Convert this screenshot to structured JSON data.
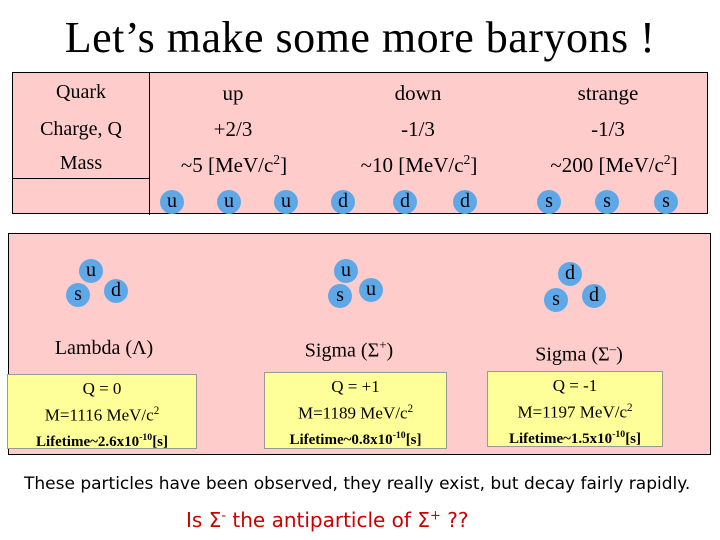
{
  "title": "Let’s make some more baryons !",
  "table": {
    "row_labels": [
      "Quark",
      "Charge, Q",
      "Mass"
    ],
    "columns": [
      {
        "name": "up",
        "charge": "+2/3",
        "mass": "~5 [MeV/c",
        "mass_sup": "2",
        "mass_end": "]",
        "symbol": "u"
      },
      {
        "name": "down",
        "charge": "-1/3",
        "mass": "~10 [MeV/c",
        "mass_sup": "2",
        "mass_end": "]",
        "symbol": "d"
      },
      {
        "name": "strange",
        "charge": "-1/3",
        "mass": "~200 [MeV/c",
        "mass_sup": "2",
        "mass_end": "]",
        "symbol": "s"
      }
    ]
  },
  "particles": {
    "lambda": {
      "quarks": [
        "u",
        "s",
        "d"
      ],
      "name": "Lambda (",
      "symbol": "Λ",
      "name_end": ")",
      "q": "Q = 0",
      "mass": "M=1116 MeV/c",
      "mass_sup": "2",
      "lifetime": "Lifetime~2.6x10",
      "lifetime_sup": "-10",
      "lifetime_end": "[s]"
    },
    "sigma_plus": {
      "quarks": [
        "u",
        "s",
        "u"
      ],
      "name": "Sigma (",
      "symbol": "Σ",
      "charge_sup": "+",
      "name_end": ")",
      "q": "Q = +1",
      "mass": "M=1189 MeV/c",
      "mass_sup": "2",
      "lifetime": "Lifetime~0.8x10",
      "lifetime_sup": "-10",
      "lifetime_end": "[s]"
    },
    "sigma_minus": {
      "quarks": [
        "d",
        "s",
        "d"
      ],
      "name": "Sigma (",
      "symbol": "Σ",
      "charge_sup": "–",
      "name_end": ")",
      "q": "Q = -1",
      "mass": "M=1197 MeV/c",
      "mass_sup": "2",
      "lifetime": "Lifetime~1.5x10",
      "lifetime_sup": "-10",
      "lifetime_end": "[s]"
    }
  },
  "bottom_text": "These particles have been observed, they really exist, but decay fairly rapidly.",
  "question": {
    "start": "Is ",
    "s1": "Σ",
    "s1_sup": "-",
    "mid": " the antiparticle of ",
    "s2": "Σ",
    "s2_sup": "+",
    "end": " ??"
  },
  "colors": {
    "table_bg": "#ffcccc",
    "quark_ball": "#5fa8e8",
    "info_box": "#ffff99",
    "question": "#cc0000"
  }
}
